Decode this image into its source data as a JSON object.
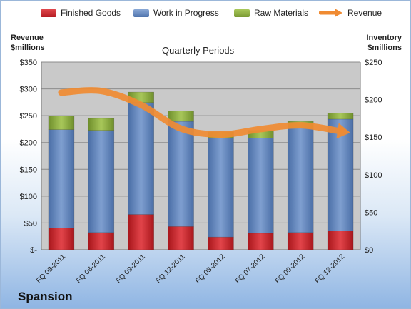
{
  "legend": {
    "finished_goods": "Finished Goods",
    "work_in_progress": "Work in Progress",
    "raw_materials": "Raw Materials",
    "revenue": "Revenue"
  },
  "axes": {
    "left_title_line1": "Revenue",
    "left_title_line2": "$millions",
    "right_title_line1": "Inventory",
    "right_title_line2": "$millions"
  },
  "title": "Quarterly Periods",
  "company": "Spansion",
  "colors": {
    "finished_goods": "#c8252b",
    "work_in_progress": "#5f84bd",
    "raw_materials": "#8bab3e",
    "revenue": "#f08b32",
    "plot_bg": "#c9c9c9"
  },
  "chart_data": {
    "type": "bar",
    "stacked": true,
    "categories": [
      "FQ 03-2011",
      "FQ 06-2011",
      "FQ 09-2011",
      "FQ 12-2011",
      "FQ 03-2012",
      "FQ 07-2012",
      "FQ 09-2012",
      "FQ 12-2012"
    ],
    "series": [
      {
        "name": "Finished Goods",
        "axis": "right",
        "values": [
          29,
          23,
          47,
          31,
          17,
          22,
          23,
          25
        ]
      },
      {
        "name": "Work in Progress",
        "axis": "right",
        "values": [
          131,
          136,
          149,
          140,
          132,
          127,
          139,
          149
        ]
      },
      {
        "name": "Raw Materials",
        "axis": "right",
        "values": [
          18,
          16,
          14,
          14,
          8,
          10,
          9,
          8
        ]
      },
      {
        "name": "Revenue",
        "axis": "left",
        "type": "line",
        "values": [
          293,
          296,
          270,
          226,
          215,
          225,
          232,
          221
        ]
      }
    ],
    "y_left": {
      "label": "Revenue $millions",
      "range": [
        0,
        350
      ],
      "ticks": [
        "$-",
        "$50",
        "$100",
        "$150",
        "$200",
        "$250",
        "$300",
        "$350"
      ]
    },
    "y_right": {
      "label": "Inventory $millions",
      "range": [
        0,
        250
      ],
      "ticks": [
        "$0",
        "$50",
        "$100",
        "$150",
        "$200",
        "$250"
      ]
    },
    "grid": true,
    "legend_position": "top"
  }
}
